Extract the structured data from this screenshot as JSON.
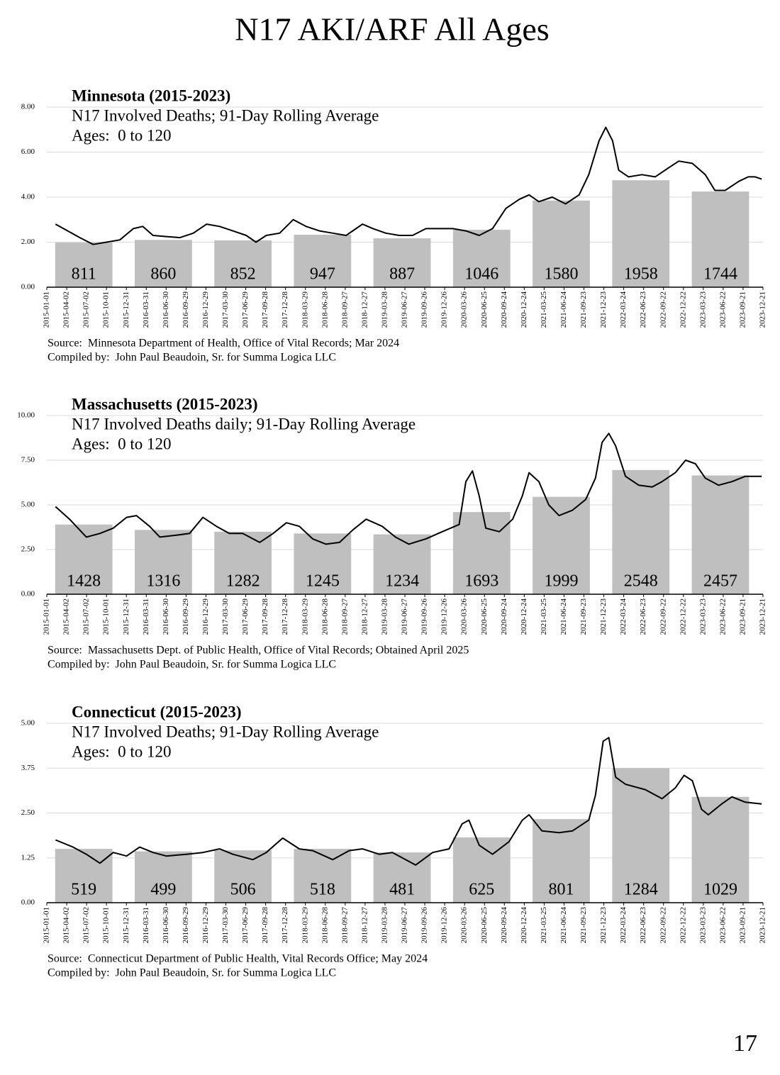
{
  "page_title": "N17 AKI/ARF All Ages",
  "page_number": "17",
  "chart_data": [
    {
      "type": "combo",
      "title": "Minnesota (2015-2023)",
      "subtitle": "N17 Involved Deaths; 91-Day Rolling Average",
      "ages": "Ages:  0 to 120",
      "source": "Source:  Minnesota Department of Health, Office of Vital Records; Mar 2024",
      "compiled": "Compiled by:  John Paul Beaudoin, Sr. for Summa Logica LLC",
      "xlim": [
        "2015-01-01",
        "2023-12-21"
      ],
      "xticks": [
        "2015-01-01",
        "2015-04-02",
        "2015-07-02",
        "2015-10-01",
        "2015-12-31",
        "2016-03-31",
        "2016-06-30",
        "2016-09-29",
        "2016-12-29",
        "2017-03-30",
        "2017-06-29",
        "2017-09-28",
        "2017-12-28",
        "2018-03-29",
        "2018-06-28",
        "2018-09-27",
        "2018-12-27",
        "2019-03-28",
        "2019-06-27",
        "2019-09-26",
        "2019-12-26",
        "2020-03-26",
        "2020-06-25",
        "2020-09-24",
        "2020-12-24",
        "2021-03-25",
        "2021-06-24",
        "2021-09-23",
        "2021-12-23",
        "2022-03-24",
        "2022-06-23",
        "2022-09-22",
        "2022-12-22",
        "2023-03-23",
        "2023-06-22",
        "2023-09-21",
        "2023-12-21"
      ],
      "ylim": [
        0,
        8
      ],
      "yticks": [
        {
          "value": 0,
          "label": "0.00"
        },
        {
          "value": 2,
          "label": "2.00"
        },
        {
          "value": 4,
          "label": "4.00"
        },
        {
          "value": 6,
          "label": "6.00"
        },
        {
          "value": 8,
          "label": "8.00"
        }
      ],
      "grid": true,
      "totals": [
        811,
        860,
        852,
        947,
        887,
        1046,
        1580,
        1958,
        1744
      ],
      "series": [
        {
          "kind": "bar",
          "color": "#bfbfbf",
          "values": [
            1.98,
            2.1,
            2.08,
            2.33,
            2.17,
            2.55,
            3.85,
            4.75,
            4.25
          ]
        },
        {
          "kind": "line",
          "color": "#000000",
          "x": [
            "2015-02-10",
            "2015-06-01",
            "2015-08-01",
            "2015-10-01",
            "2015-12-01",
            "2016-02-01",
            "2016-03-15",
            "2016-05-01",
            "2016-07-01",
            "2016-09-01",
            "2016-11-01",
            "2017-01-01",
            "2017-03-01",
            "2017-05-01",
            "2017-07-01",
            "2017-08-15",
            "2017-10-01",
            "2017-12-01",
            "2018-02-01",
            "2018-04-01",
            "2018-06-01",
            "2018-08-01",
            "2018-10-01",
            "2018-12-15",
            "2019-02-01",
            "2019-04-01",
            "2019-06-01",
            "2019-08-01",
            "2019-10-01",
            "2019-12-01",
            "2020-02-01",
            "2020-04-01",
            "2020-06-01",
            "2020-08-01",
            "2020-10-01",
            "2020-12-01",
            "2021-01-15",
            "2021-03-01",
            "2021-05-01",
            "2021-07-01",
            "2021-09-01",
            "2021-10-15",
            "2021-12-01",
            "2022-01-01",
            "2022-02-01",
            "2022-03-01",
            "2022-04-15",
            "2022-06-15",
            "2022-08-15",
            "2022-10-15",
            "2022-12-01",
            "2023-02-01",
            "2023-04-01",
            "2023-05-15",
            "2023-07-01",
            "2023-09-01",
            "2023-10-15",
            "2023-11-15",
            "2023-12-15"
          ],
          "values": [
            2.8,
            2.2,
            1.9,
            2.0,
            2.1,
            2.6,
            2.7,
            2.3,
            2.25,
            2.2,
            2.4,
            2.8,
            2.7,
            2.5,
            2.3,
            2.0,
            2.3,
            2.4,
            3.0,
            2.7,
            2.5,
            2.4,
            2.3,
            2.8,
            2.6,
            2.4,
            2.3,
            2.3,
            2.6,
            2.6,
            2.6,
            2.5,
            2.3,
            2.6,
            3.5,
            3.9,
            4.1,
            3.8,
            4.0,
            3.7,
            4.1,
            5.0,
            6.5,
            7.1,
            6.5,
            5.2,
            4.9,
            5.0,
            4.9,
            5.3,
            5.6,
            5.5,
            5.0,
            4.3,
            4.3,
            4.7,
            4.9,
            4.9,
            4.8
          ]
        }
      ]
    },
    {
      "type": "combo",
      "title": "Massachusetts (2015-2023)",
      "subtitle": "N17 Involved Deaths daily; 91-Day Rolling Average",
      "ages": "Ages:  0 to 120",
      "source": "Source:  Massachusetts Dept. of Public Health, Office of Vital Records; Obtained April 2025",
      "compiled": "Compiled by:  John Paul Beaudoin, Sr. for Summa Logica LLC",
      "xlim": [
        "2015-01-01",
        "2023-12-21"
      ],
      "xticks": [
        "2015-01-01",
        "2015-04-02",
        "2015-07-02",
        "2015-10-01",
        "2015-12-31",
        "2016-03-31",
        "2016-06-30",
        "2016-09-29",
        "2016-12-29",
        "2017-03-30",
        "2017-06-29",
        "2017-09-28",
        "2017-12-28",
        "2018-03-29",
        "2018-06-28",
        "2018-09-27",
        "2018-12-27",
        "2019-03-28",
        "2019-06-27",
        "2019-09-26",
        "2019-12-26",
        "2020-03-26",
        "2020-06-25",
        "2020-09-24",
        "2020-12-24",
        "2021-03-25",
        "2021-06-24",
        "2021-09-23",
        "2021-12-23",
        "2022-03-24",
        "2022-06-23",
        "2022-09-22",
        "2022-12-22",
        "2023-03-23",
        "2023-06-22",
        "2023-09-21",
        "2023-12-21"
      ],
      "ylim": [
        0,
        10
      ],
      "yticks": [
        {
          "value": 0,
          "label": "0.00"
        },
        {
          "value": 2.5,
          "label": "2.50"
        },
        {
          "value": 5,
          "label": "5.00"
        },
        {
          "value": 7.5,
          "label": "7.50"
        },
        {
          "value": 10,
          "label": "10.00"
        }
      ],
      "grid": true,
      "totals": [
        1428,
        1316,
        1282,
        1245,
        1234,
        1693,
        1999,
        2548,
        2457
      ],
      "series": [
        {
          "kind": "bar",
          "color": "#bfbfbf",
          "values": [
            3.9,
            3.6,
            3.5,
            3.4,
            3.35,
            4.6,
            5.45,
            6.95,
            6.65
          ]
        },
        {
          "kind": "line",
          "color": "#000000",
          "x": [
            "2015-02-10",
            "2015-04-15",
            "2015-07-01",
            "2015-09-01",
            "2015-11-01",
            "2016-01-01",
            "2016-02-15",
            "2016-04-15",
            "2016-06-01",
            "2016-08-15",
            "2016-10-15",
            "2016-12-15",
            "2017-02-15",
            "2017-04-15",
            "2017-06-15",
            "2017-09-01",
            "2017-11-01",
            "2018-01-01",
            "2018-03-01",
            "2018-05-01",
            "2018-07-01",
            "2018-09-01",
            "2018-11-01",
            "2019-01-01",
            "2019-03-15",
            "2019-05-15",
            "2019-07-15",
            "2019-10-01",
            "2019-12-15",
            "2020-03-01",
            "2020-04-01",
            "2020-05-01",
            "2020-06-01",
            "2020-07-01",
            "2020-09-01",
            "2020-11-01",
            "2020-12-15",
            "2021-01-15",
            "2021-03-01",
            "2021-04-15",
            "2021-06-01",
            "2021-08-01",
            "2021-10-01",
            "2021-11-15",
            "2021-12-15",
            "2022-01-15",
            "2022-02-15",
            "2022-04-01",
            "2022-06-01",
            "2022-08-01",
            "2022-09-15",
            "2022-11-15",
            "2023-01-01",
            "2023-02-15",
            "2023-04-01",
            "2023-06-01",
            "2023-08-01",
            "2023-10-01",
            "2023-12-15"
          ],
          "values": [
            4.9,
            4.2,
            3.2,
            3.4,
            3.7,
            4.3,
            4.4,
            3.8,
            3.2,
            3.3,
            3.4,
            4.3,
            3.8,
            3.4,
            3.4,
            2.9,
            3.4,
            4.0,
            3.8,
            3.1,
            2.8,
            2.9,
            3.6,
            4.2,
            3.8,
            3.2,
            2.8,
            3.1,
            3.5,
            3.9,
            6.3,
            6.9,
            5.5,
            3.7,
            3.5,
            4.2,
            5.5,
            6.8,
            6.3,
            5.0,
            4.4,
            4.7,
            5.3,
            6.5,
            8.5,
            9.0,
            8.3,
            6.6,
            6.1,
            6.0,
            6.3,
            6.8,
            7.5,
            7.3,
            6.5,
            6.1,
            6.3,
            6.6,
            6.6
          ]
        }
      ]
    },
    {
      "type": "combo",
      "title": "Connecticut (2015-2023)",
      "subtitle": "N17 Involved Deaths; 91-Day Rolling Average",
      "ages": "Ages:  0 to 120",
      "source": "Source:  Connecticut Department of Public Health, Vital Records Office; May 2024",
      "compiled": "Compiled by:  John Paul Beaudoin, Sr. for Summa Logica LLC",
      "xlim": [
        "2015-01-01",
        "2023-12-21"
      ],
      "xticks": [
        "2015-01-01",
        "2015-04-02",
        "2015-07-02",
        "2015-10-01",
        "2015-12-31",
        "2016-03-31",
        "2016-06-30",
        "2016-09-29",
        "2016-12-29",
        "2017-03-30",
        "2017-06-29",
        "2017-09-28",
        "2017-12-28",
        "2018-03-29",
        "2018-06-28",
        "2018-09-27",
        "2018-12-27",
        "2019-03-28",
        "2019-06-27",
        "2019-09-26",
        "2019-12-26",
        "2020-03-26",
        "2020-06-25",
        "2020-09-24",
        "2020-12-24",
        "2021-03-25",
        "2021-06-24",
        "2021-09-23",
        "2021-12-23",
        "2022-03-24",
        "2022-06-23",
        "2022-09-22",
        "2022-12-22",
        "2023-03-23",
        "2023-06-22",
        "2023-09-21",
        "2023-12-21"
      ],
      "ylim": [
        0,
        5
      ],
      "yticks": [
        {
          "value": 0,
          "label": "0.00"
        },
        {
          "value": 1.25,
          "label": "1.25"
        },
        {
          "value": 2.5,
          "label": "2.50"
        },
        {
          "value": 3.75,
          "label": "3.75"
        },
        {
          "value": 5,
          "label": "5.00"
        }
      ],
      "grid": true,
      "totals": [
        519,
        499,
        506,
        518,
        481,
        625,
        801,
        1284,
        1029
      ],
      "series": [
        {
          "kind": "bar",
          "color": "#bfbfbf",
          "values": [
            1.5,
            1.43,
            1.46,
            1.5,
            1.4,
            1.82,
            2.33,
            3.75,
            2.95
          ]
        },
        {
          "kind": "line",
          "color": "#000000",
          "x": [
            "2015-02-10",
            "2015-05-01",
            "2015-07-01",
            "2015-09-01",
            "2015-11-01",
            "2016-01-01",
            "2016-03-01",
            "2016-05-01",
            "2016-07-01",
            "2016-10-01",
            "2016-12-15",
            "2017-03-01",
            "2017-05-01",
            "2017-08-01",
            "2017-10-01",
            "2017-12-15",
            "2018-03-01",
            "2018-05-01",
            "2018-08-01",
            "2018-10-15",
            "2018-12-15",
            "2019-03-01",
            "2019-05-01",
            "2019-08-15",
            "2019-11-01",
            "2020-01-15",
            "2020-03-15",
            "2020-04-15",
            "2020-06-01",
            "2020-08-01",
            "2020-10-15",
            "2020-12-15",
            "2021-01-15",
            "2021-03-15",
            "2021-06-01",
            "2021-08-01",
            "2021-10-15",
            "2021-11-15",
            "2021-12-20",
            "2022-01-15",
            "2022-02-15",
            "2022-04-01",
            "2022-07-01",
            "2022-09-15",
            "2022-11-15",
            "2022-12-25",
            "2023-02-01",
            "2023-03-15",
            "2023-04-15",
            "2023-06-15",
            "2023-08-01",
            "2023-10-01",
            "2023-12-15"
          ],
          "values": [
            1.75,
            1.55,
            1.35,
            1.1,
            1.4,
            1.3,
            1.55,
            1.4,
            1.3,
            1.35,
            1.4,
            1.5,
            1.35,
            1.2,
            1.4,
            1.8,
            1.5,
            1.45,
            1.2,
            1.45,
            1.5,
            1.35,
            1.4,
            1.05,
            1.4,
            1.5,
            2.2,
            2.3,
            1.6,
            1.35,
            1.7,
            2.3,
            2.45,
            2.0,
            1.95,
            2.0,
            2.3,
            3.0,
            4.5,
            4.6,
            3.5,
            3.3,
            3.15,
            2.9,
            3.2,
            3.55,
            3.4,
            2.6,
            2.45,
            2.75,
            2.95,
            2.8,
            2.75
          ]
        }
      ]
    }
  ]
}
